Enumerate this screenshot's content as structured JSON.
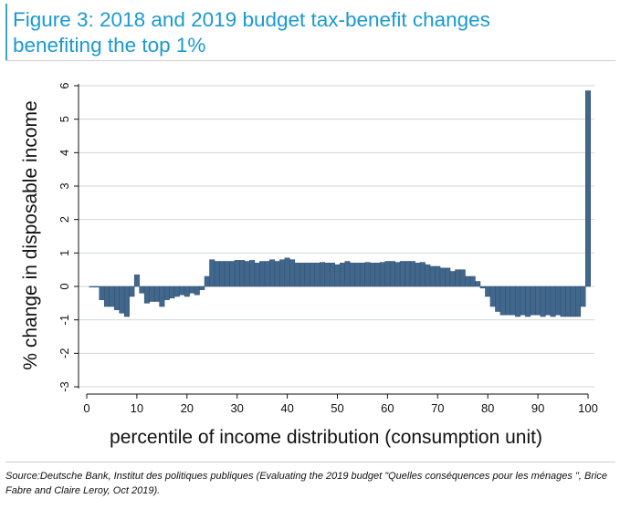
{
  "header": {
    "title_line1": "Figure 3: 2018 and 2019 budget tax-benefit changes",
    "title_line2": "benefiting the top 1%"
  },
  "footer": {
    "source": "Source:Deutsche Bank, Institut des politiques publiques (Evaluating the 2019 budget \"Quelles conséquences pour les ménages \", Brice Fabre and Claire Leroy, Oct 2019)."
  },
  "colors": {
    "bar": "#42678c",
    "grid": "#cfd6dc",
    "title": "#1a9ad0",
    "accent": "#3aa6c9"
  },
  "chart_data": {
    "type": "bar",
    "title": "Figure 3: 2018 and 2019 budget tax-benefit changes benefiting the top 1%",
    "xlabel": "percentile of income distribution (consumption unit)",
    "ylabel": "% change in disposable income",
    "xlim": [
      0,
      100
    ],
    "ylim": [
      -3,
      6
    ],
    "xticks": [
      0,
      10,
      20,
      30,
      40,
      50,
      60,
      70,
      80,
      90,
      100
    ],
    "yticks": [
      -3,
      -2,
      -1,
      0,
      1,
      2,
      3,
      4,
      5,
      6
    ],
    "grid": true,
    "x": [
      1,
      2,
      3,
      4,
      5,
      6,
      7,
      8,
      9,
      10,
      11,
      12,
      13,
      14,
      15,
      16,
      17,
      18,
      19,
      20,
      21,
      22,
      23,
      24,
      25,
      26,
      27,
      28,
      29,
      30,
      31,
      32,
      33,
      34,
      35,
      36,
      37,
      38,
      39,
      40,
      41,
      42,
      43,
      44,
      45,
      46,
      47,
      48,
      49,
      50,
      51,
      52,
      53,
      54,
      55,
      56,
      57,
      58,
      59,
      60,
      61,
      62,
      63,
      64,
      65,
      66,
      67,
      68,
      69,
      70,
      71,
      72,
      73,
      74,
      75,
      76,
      77,
      78,
      79,
      80,
      81,
      82,
      83,
      84,
      85,
      86,
      87,
      88,
      89,
      90,
      91,
      92,
      93,
      94,
      95,
      96,
      97,
      98,
      99,
      100
    ],
    "values": [
      -0.02,
      -0.02,
      -0.4,
      -0.6,
      -0.6,
      -0.7,
      -0.8,
      -0.9,
      -0.3,
      0.35,
      -0.2,
      -0.5,
      -0.45,
      -0.45,
      -0.6,
      -0.4,
      -0.35,
      -0.3,
      -0.25,
      -0.3,
      -0.2,
      -0.25,
      -0.1,
      0.3,
      0.8,
      0.75,
      0.75,
      0.75,
      0.75,
      0.78,
      0.78,
      0.75,
      0.78,
      0.7,
      0.75,
      0.75,
      0.8,
      0.75,
      0.8,
      0.85,
      0.8,
      0.7,
      0.7,
      0.7,
      0.7,
      0.7,
      0.72,
      0.7,
      0.7,
      0.65,
      0.7,
      0.75,
      0.7,
      0.7,
      0.7,
      0.72,
      0.7,
      0.7,
      0.72,
      0.75,
      0.75,
      0.72,
      0.75,
      0.75,
      0.75,
      0.7,
      0.72,
      0.65,
      0.6,
      0.6,
      0.55,
      0.55,
      0.45,
      0.5,
      0.5,
      0.3,
      0.3,
      0.15,
      -0.05,
      -0.3,
      -0.6,
      -0.75,
      -0.85,
      -0.85,
      -0.85,
      -0.9,
      -0.85,
      -0.9,
      -0.85,
      -0.85,
      -0.9,
      -0.85,
      -0.9,
      -0.85,
      -0.9,
      -0.9,
      -0.9,
      -0.9,
      -0.6,
      5.85
    ]
  }
}
